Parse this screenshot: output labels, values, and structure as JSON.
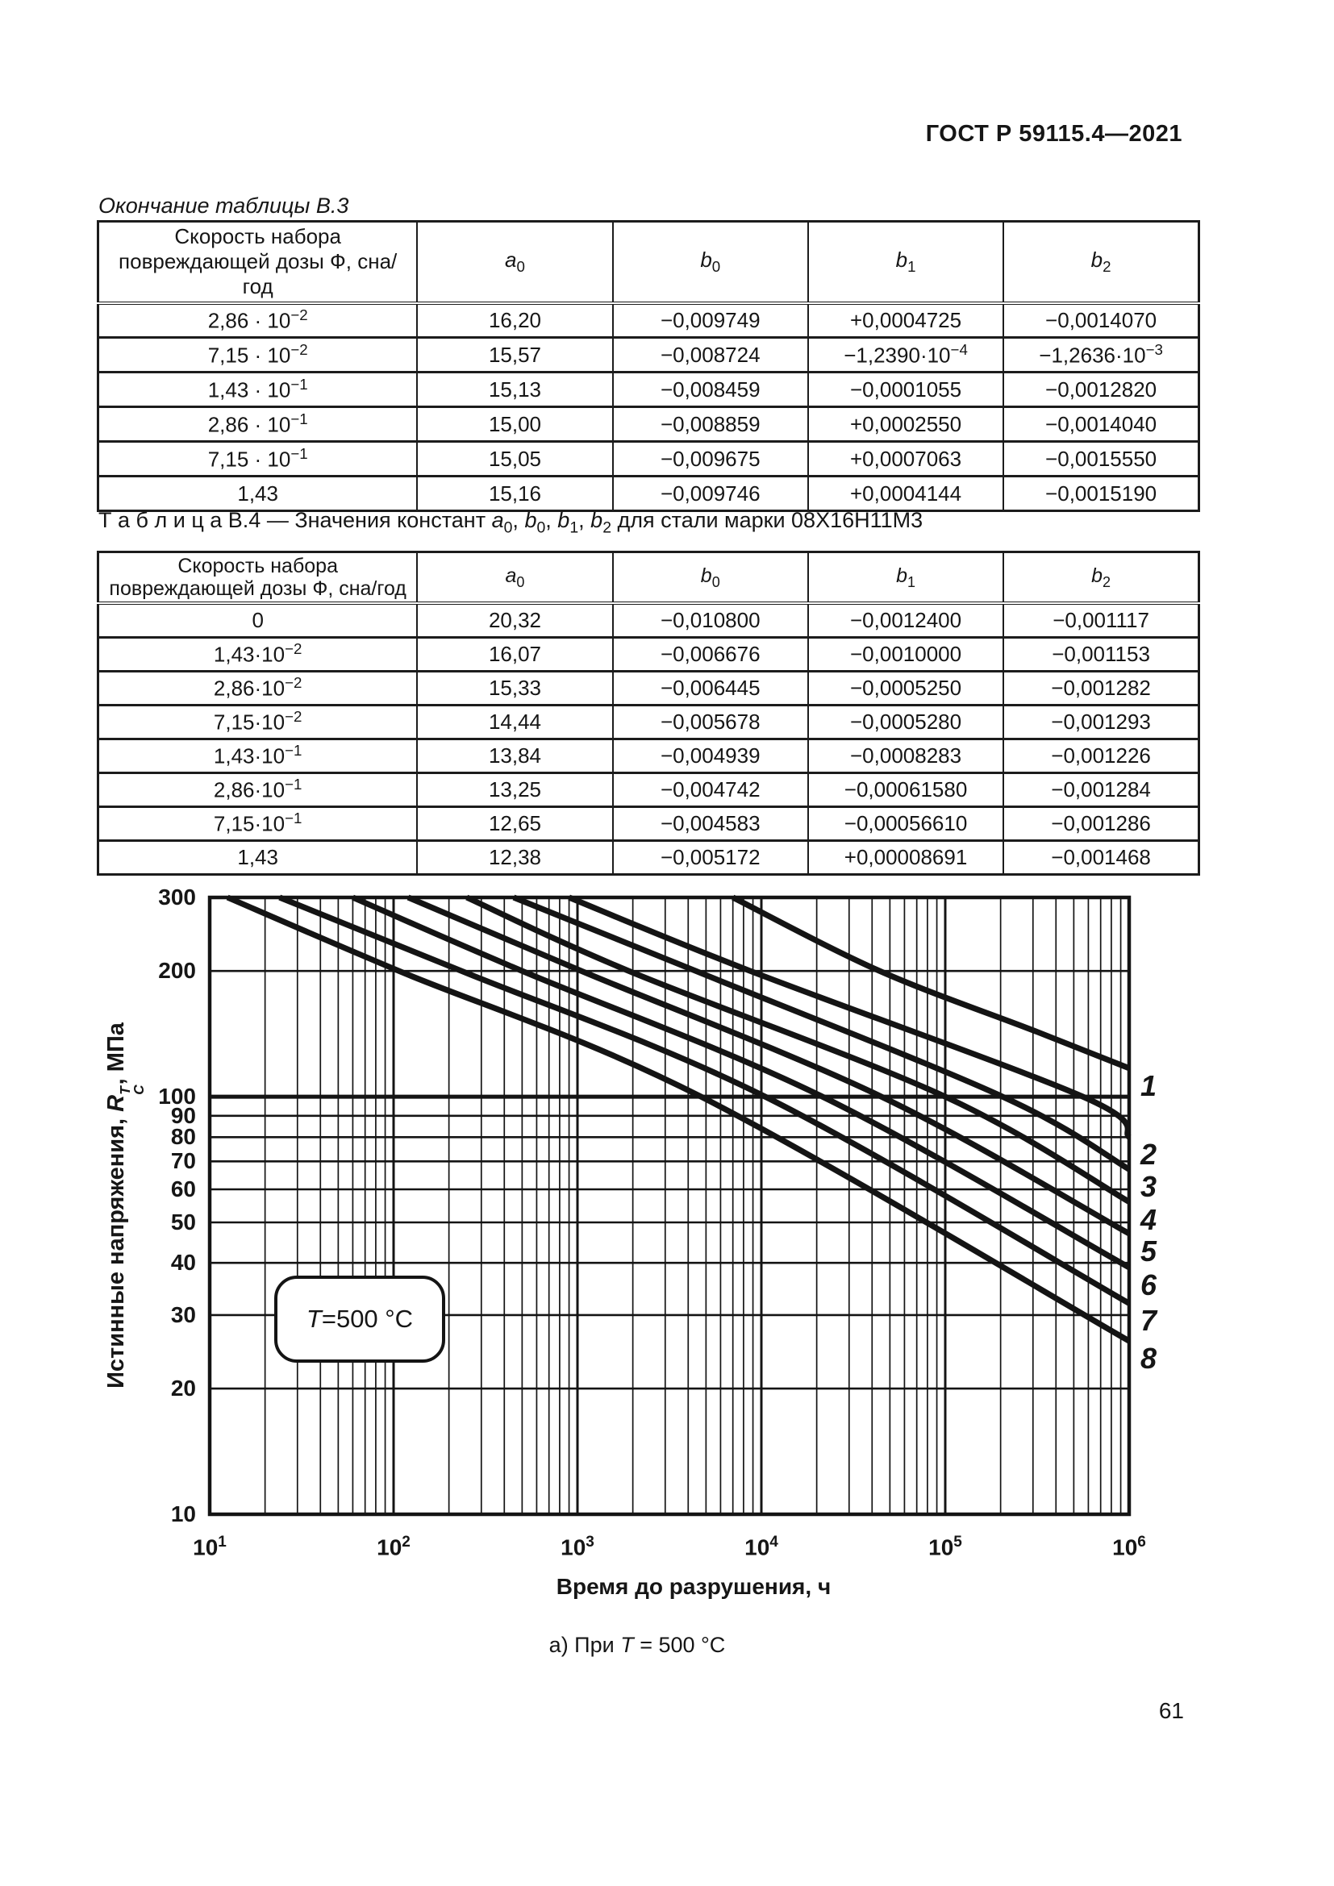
{
  "page": {
    "doc_header": "ГОСТ Р 59115.4—2021",
    "page_number": "61"
  },
  "table_b3": {
    "caption": "Окончание таблицы В.3",
    "col_header_dose": "Скорость набора повреждающей дозы Ф, сна/год",
    "const_headers": [
      {
        "base": "a",
        "sub": "0"
      },
      {
        "base": "b",
        "sub": "0"
      },
      {
        "base": "b",
        "sub": "1"
      },
      {
        "base": "b",
        "sub": "2"
      }
    ],
    "rows": [
      [
        "2,86 · 10^−2",
        "16,20",
        "−0,009749",
        "+0,0004725",
        "−0,0014070"
      ],
      [
        "7,15 · 10^−2",
        "15,57",
        "−0,008724",
        "−1,2390·10^−4",
        "−1,2636·10^−3"
      ],
      [
        "1,43 · 10^−1",
        "15,13",
        "−0,008459",
        "−0,0001055",
        "−0,0012820"
      ],
      [
        "2,86 · 10^−1",
        "15,00",
        "−0,008859",
        "+0,0002550",
        "−0,0014040"
      ],
      [
        "7,15 · 10^−1",
        "15,05",
        "−0,009675",
        "+0,0007063",
        "−0,0015550"
      ],
      [
        "1,43",
        "15,16",
        "−0,009746",
        "+0,0004144",
        "−0,0015190"
      ]
    ]
  },
  "table_b4": {
    "title_segments": [
      {
        "text": "Т а б л и ц а   В.4 — Значения констант ",
        "style": "normal"
      },
      {
        "text": "a",
        "style": "italic"
      },
      {
        "text": "0",
        "style": "sub"
      },
      {
        "text": ", ",
        "style": "normal"
      },
      {
        "text": "b",
        "style": "italic"
      },
      {
        "text": "0",
        "style": "sub"
      },
      {
        "text": ", ",
        "style": "normal"
      },
      {
        "text": "b",
        "style": "italic"
      },
      {
        "text": "1",
        "style": "sub"
      },
      {
        "text": ", ",
        "style": "normal"
      },
      {
        "text": "b",
        "style": "italic"
      },
      {
        "text": "2",
        "style": "sub"
      },
      {
        "text": " для стали марки 08Х16Н11М3",
        "style": "normal"
      }
    ],
    "col_header_dose": "Скорость набора повреждающей дозы Ф, сна/год",
    "const_headers": [
      {
        "base": "a",
        "sub": "0"
      },
      {
        "base": "b",
        "sub": "0"
      },
      {
        "base": "b",
        "sub": "1"
      },
      {
        "base": "b",
        "sub": "2"
      }
    ],
    "rows": [
      [
        "0",
        "20,32",
        "−0,010800",
        "−0,0012400",
        "−0,001117"
      ],
      [
        "1,43·10^−2",
        "16,07",
        "−0,006676",
        "−0,0010000",
        "−0,001153"
      ],
      [
        "2,86·10^−2",
        "15,33",
        "−0,006445",
        "−0,0005250",
        "−0,001282"
      ],
      [
        "7,15·10^−2",
        "14,44",
        "−0,005678",
        "−0,0005280",
        "−0,001293"
      ],
      [
        "1,43·10^−1",
        "13,84",
        "−0,004939",
        "−0,0008283",
        "−0,001226"
      ],
      [
        "2,86·10^−1",
        "13,25",
        "−0,004742",
        "−0,00061580",
        "−0,001284"
      ],
      [
        "7,15·10^−1",
        "12,65",
        "−0,004583",
        "−0,00056610",
        "−0,001286"
      ],
      [
        "1,43",
        "12,38",
        "−0,005172",
        "+0,00008691",
        "−0,001468"
      ]
    ]
  },
  "chart_data": {
    "type": "line",
    "title": "",
    "xlabel": "Время до разрушения, ч",
    "ylabel": {
      "prefix": "Истинные напряжения, ",
      "symbol": "R",
      "sup": "T",
      "sub": "C",
      "suffix": ", МПа"
    },
    "x_scale": "log",
    "y_scale": "log",
    "xlim": [
      10,
      1000000
    ],
    "ylim": [
      10,
      300
    ],
    "x_ticks": [
      {
        "base": "10",
        "exp": "1"
      },
      {
        "base": "10",
        "exp": "2"
      },
      {
        "base": "10",
        "exp": "3"
      },
      {
        "base": "10",
        "exp": "4"
      },
      {
        "base": "10",
        "exp": "5"
      },
      {
        "base": "10",
        "exp": "6"
      }
    ],
    "y_ticks": [
      300,
      200,
      100,
      90,
      80,
      70,
      60,
      50,
      40,
      30,
      20,
      10
    ],
    "grid": true,
    "legend_position": "curve-end-labels-right",
    "annotation": {
      "italic": "T",
      "rest": "=500 °С"
    },
    "caption": {
      "pre": "а) При ",
      "italic": "T",
      "post": " = 500 °С"
    },
    "series": [
      {
        "name": "1",
        "points": [
          [
            7000,
            300
          ],
          [
            44000,
            200
          ],
          [
            316000,
            143
          ],
          [
            1000000,
            117
          ]
        ]
      },
      {
        "name": "2",
        "points": [
          [
            900,
            300
          ],
          [
            8700,
            200
          ],
          [
            560000,
            100
          ],
          [
            1000000,
            80
          ]
        ]
      },
      {
        "name": "3",
        "points": [
          [
            450,
            300
          ],
          [
            4400,
            200
          ],
          [
            205000,
            100
          ],
          [
            1000000,
            67
          ]
        ]
      },
      {
        "name": "4",
        "points": [
          [
            250,
            300
          ],
          [
            1900,
            200
          ],
          [
            100000,
            100
          ],
          [
            1000000,
            56
          ]
        ]
      },
      {
        "name": "5",
        "points": [
          [
            120,
            300
          ],
          [
            1050,
            200
          ],
          [
            45000,
            100
          ],
          [
            1000000,
            47
          ]
        ]
      },
      {
        "name": "6",
        "points": [
          [
            60,
            300
          ],
          [
            500,
            200
          ],
          [
            21500,
            100
          ],
          [
            1000000,
            39
          ]
        ]
      },
      {
        "name": "7",
        "points": [
          [
            24,
            300
          ],
          [
            234,
            200
          ],
          [
            10500,
            100
          ],
          [
            1000000,
            32
          ]
        ]
      },
      {
        "name": "8",
        "points": [
          [
            12.5,
            300
          ],
          [
            107,
            200
          ],
          [
            4700,
            100
          ],
          [
            1000000,
            26
          ]
        ]
      }
    ]
  }
}
